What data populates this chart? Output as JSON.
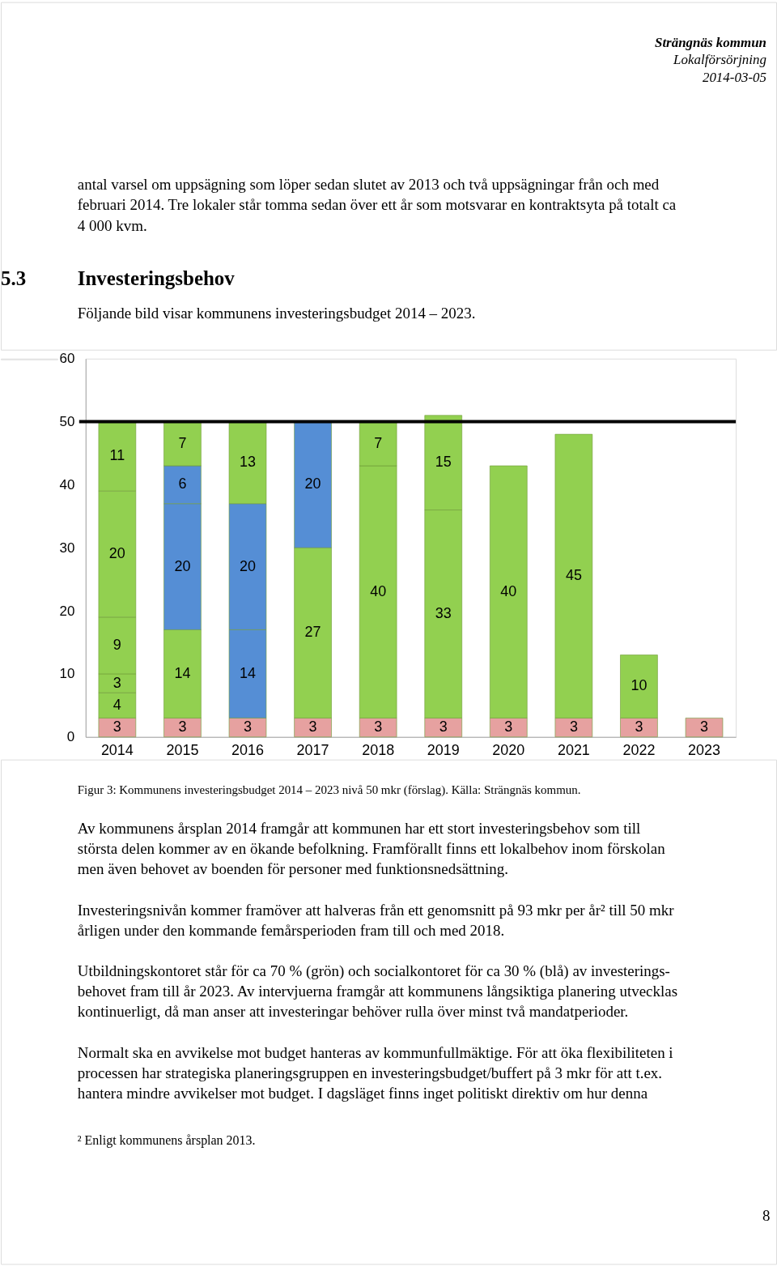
{
  "chart_data": {
    "type": "bar",
    "stacked": true,
    "categories": [
      "2014",
      "2015",
      "2016",
      "2017",
      "2018",
      "2019",
      "2020",
      "2021",
      "2022",
      "2023"
    ],
    "series": [
      {
        "colors": [
          "#e6a1a0",
          "#e6a1a0",
          "#e6a1a0",
          "#e6a1a0",
          "#e6a1a0",
          "#e6a1a0",
          "#e6a1a0",
          "#e6a1a0",
          "#e6a1a0",
          "#e6a1a0"
        ],
        "values": [
          3,
          3,
          3,
          3,
          3,
          3,
          3,
          3,
          3,
          3
        ]
      },
      {
        "colors": [
          "#92d050",
          "#92d050",
          "#558ed5",
          "#92d050",
          "#92d050",
          "#92d050",
          "#92d050",
          "#92d050",
          "#92d050",
          "#92d050"
        ],
        "values": [
          4,
          14,
          14,
          27,
          40,
          33,
          40,
          45,
          10,
          null
        ]
      },
      {
        "colors": [
          "#92d050",
          "#558ed5",
          "#558ed5",
          "#558ed5",
          "#92d050",
          "#92d050",
          "#92d050",
          "#92d050",
          "#92d050",
          "#92d050"
        ],
        "values": [
          3,
          20,
          20,
          20,
          7,
          15,
          null,
          null,
          null,
          null
        ]
      },
      {
        "colors": [
          "#92d050",
          "#558ed5",
          "#92d050",
          "#92d050",
          "#92d050",
          "#92d050",
          "#92d050",
          "#92d050",
          "#92d050",
          "#92d050"
        ],
        "values": [
          9,
          6,
          13,
          null,
          null,
          null,
          null,
          null,
          null,
          null
        ]
      },
      {
        "colors": [
          "#92d050",
          "#92d050",
          "#92d050",
          "#92d050",
          "#92d050",
          "#92d050",
          "#92d050",
          "#92d050",
          "#92d050",
          "#92d050"
        ],
        "values": [
          20,
          7,
          null,
          null,
          null,
          null,
          null,
          null,
          null,
          null
        ]
      },
      {
        "colors": [
          "#92d050",
          "#92d050",
          "#92d050",
          "#92d050",
          "#92d050",
          "#92d050",
          "#92d050",
          "#92d050",
          "#92d050",
          "#92d050"
        ],
        "values": [
          11,
          null,
          null,
          null,
          null,
          null,
          null,
          null,
          null,
          null
        ]
      }
    ],
    "ylim": [
      0,
      60
    ],
    "yticks": [
      0,
      10,
      20,
      30,
      40,
      50,
      60
    ],
    "grid": false,
    "data_labels": true,
    "ref_lines": [
      {
        "axis": "y",
        "value": 50,
        "color": "#000000"
      }
    ],
    "annotations": [
      "Strängnäs kommun",
      "Lokalförsörjning",
      "2014-03-05",
      "antal varsel om uppsägning som löper sedan slutet av 2013 och två uppsägningar från och med",
      "februari 2014. Tre lokaler står tomma sedan över ett år som motsvarar en kontraktsyta på totalt ca",
      "4 000 kvm.",
      "5.3",
      "Investeringsbehov",
      "Följande bild visar kommunens investeringsbudget 2014 – 2023.",
      "Figur 3: Kommunens investeringsbudget 2014 – 2023 nivå 50 mkr (förslag). Källa: Strängnäs kommun.",
      "Av kommunens årsplan 2014 framgår att kommunen har ett stort investeringsbehov som till",
      "största delen kommer av en ökande befolkning. Framförallt finns ett lokalbehov inom förskolan",
      "men även behovet av boenden för personer med funktionsnedsättning.",
      "Investeringsnivån kommer framöver att halveras från ett genomsnitt på 93 mkr per år² till 50 mkr",
      "årligen under den kommande femårsperioden fram till och med 2018.",
      "Utbildningskontoret står för ca 70 % (grön) och socialkontoret för ca 30 % (blå) av investerings-",
      "behovet fram till år 2023. Av intervjuerna framgår att kommunens långsiktiga planering utvecklas",
      "kontinuerligt, då man anser att investeringar behöver rulla över minst två mandatperioder.",
      "Normalt ska en avvikelse mot budget hanteras av kommunfullmäktige. För att öka flexibiliteten i",
      "processen har strategiska planeringsgruppen en investeringsbudget/buffert på 3 mkr för att t.ex.",
      "hantera mindre avvikelser mot budget. I dagsläget finns inget politiskt direktiv om hur denna",
      "² Enligt kommunens årsplan 2013.",
      "8"
    ]
  }
}
